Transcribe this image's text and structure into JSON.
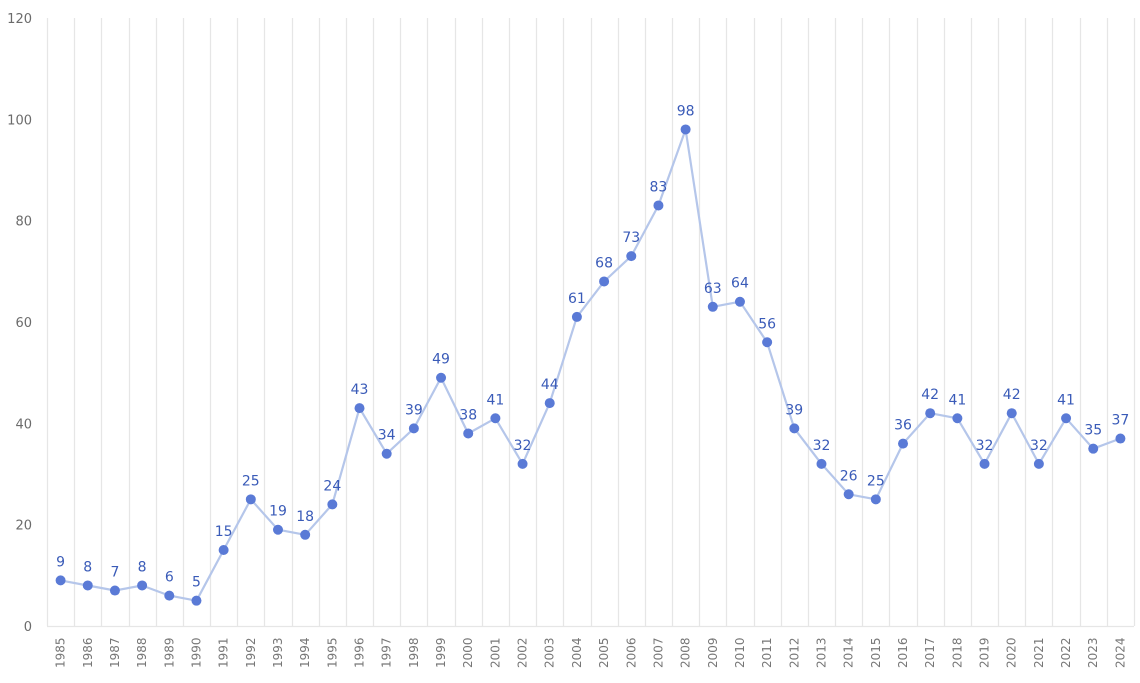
{
  "chart_data": {
    "type": "line",
    "title": "",
    "xlabel": "",
    "ylabel": "",
    "ylim": [
      0,
      120
    ],
    "yticks": [
      0,
      20,
      40,
      60,
      80,
      100,
      120
    ],
    "grid": {
      "vertical": true,
      "horizontal": false
    },
    "legend": null,
    "categories": [
      "1985",
      "1986",
      "1987",
      "1988",
      "1989",
      "1990",
      "1991",
      "1992",
      "1993",
      "1994",
      "1995",
      "1996",
      "1997",
      "1998",
      "1999",
      "2000",
      "2001",
      "2002",
      "2003",
      "2004",
      "2005",
      "2006",
      "2007",
      "2008",
      "2009",
      "2010",
      "2011",
      "2012",
      "2013",
      "2014",
      "2015",
      "2016",
      "2017",
      "2018",
      "2019",
      "2020",
      "2021",
      "2022",
      "2023",
      "2024"
    ],
    "series": [
      {
        "name": "",
        "values": [
          9,
          8,
          7,
          8,
          6,
          5,
          15,
          25,
          19,
          18,
          24,
          43,
          34,
          39,
          49,
          38,
          41,
          32,
          44,
          61,
          68,
          73,
          83,
          98,
          63,
          64,
          56,
          39,
          32,
          26,
          25,
          36,
          42,
          41,
          32,
          42,
          32,
          41,
          35,
          37
        ],
        "data_labels": true
      }
    ],
    "colors": {
      "line": "#b5c6ea",
      "marker": "#5a7ad6",
      "label": "#3a5bb8",
      "grid": "#e6e6e6",
      "axis_text": "#6b6b6b"
    }
  }
}
